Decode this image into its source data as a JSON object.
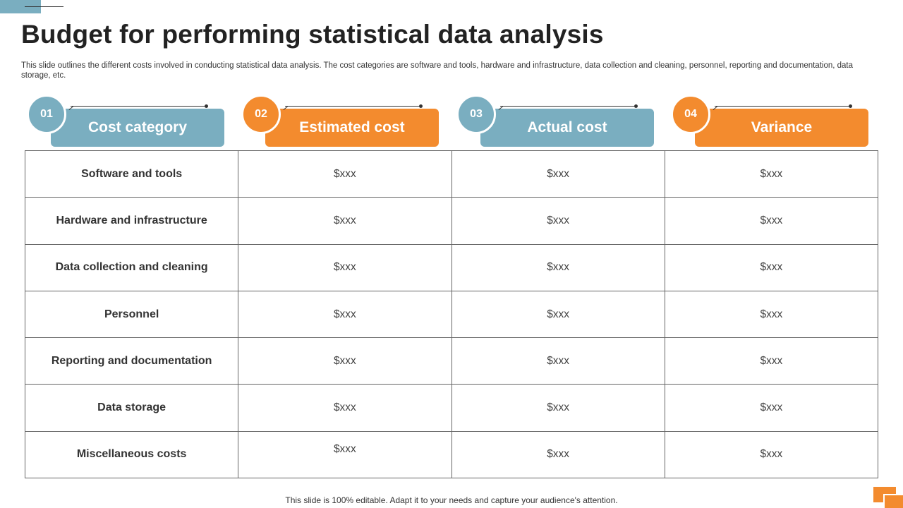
{
  "slide": {
    "title": "Budget for performing statistical data analysis",
    "subtitle": "This slide outlines the different costs involved in conducting statistical data analysis. The cost categories are software and tools, hardware and infrastructure, data collection and cleaning, personnel, reporting and documentation, data storage, etc.",
    "footer": "This slide is 100% editable. Adapt it to your needs and capture your audience's attention."
  },
  "colors": {
    "teal": "#7aaec0",
    "orange": "#f38b2e"
  },
  "headers": [
    {
      "num": "01",
      "label": "Cost category"
    },
    {
      "num": "02",
      "label": "Estimated cost"
    },
    {
      "num": "03",
      "label": "Actual cost"
    },
    {
      "num": "04",
      "label": "Variance"
    }
  ],
  "rows": [
    {
      "category": "Software and tools",
      "estimated": "$xxx",
      "actual": "$xxx",
      "variance": "$xxx"
    },
    {
      "category": "Hardware and infrastructure",
      "estimated": "$xxx",
      "actual": "$xxx",
      "variance": "$xxx"
    },
    {
      "category": "Data collection and cleaning",
      "estimated": "$xxx",
      "actual": "$xxx",
      "variance": "$xxx"
    },
    {
      "category": "Personnel",
      "estimated": "$xxx",
      "actual": "$xxx",
      "variance": "$xxx"
    },
    {
      "category": "Reporting and documentation",
      "estimated": "$xxx",
      "actual": "$xxx",
      "variance": "$xxx"
    },
    {
      "category": "Data storage",
      "estimated": "$xxx",
      "actual": "$xxx",
      "variance": "$xxx"
    },
    {
      "category": "Miscellaneous costs",
      "estimated": "$xxx",
      "actual": "$xxx",
      "variance": "$xxx"
    }
  ]
}
